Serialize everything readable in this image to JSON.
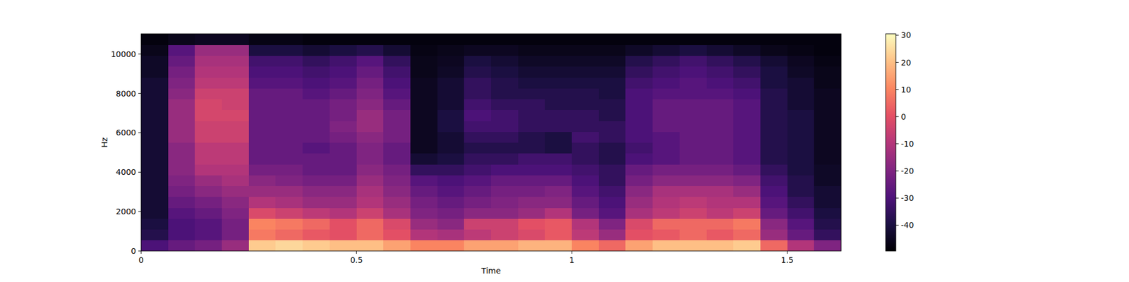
{
  "chart_data": {
    "type": "heatmap",
    "x_label": "Time",
    "y_label": "Hz",
    "color": "magma",
    "xlim": [
      0,
      1.625
    ],
    "ylim": [
      0,
      11025
    ],
    "xticks": [
      0,
      0.5,
      1,
      1.5
    ],
    "yticks": [
      0,
      2000,
      4000,
      6000,
      8000,
      10000
    ],
    "x_edges": [
      0,
      0.0625,
      0.125,
      0.1875,
      0.25,
      0.3125,
      0.375,
      0.4375,
      0.5,
      0.5625,
      0.625,
      0.6875,
      0.75,
      0.8125,
      0.875,
      0.9375,
      1.0,
      1.0625,
      1.125,
      1.1875,
      1.25,
      1.3125,
      1.375,
      1.4375,
      1.5,
      1.5625,
      1.625
    ],
    "y_edges": [
      0,
      551.25,
      1102.5,
      1653.75,
      2205,
      2756.25,
      3307.5,
      3858.75,
      4410,
      4961.25,
      5512.5,
      6063.75,
      6615,
      7166.25,
      7717.5,
      8268.75,
      8820,
      9371.25,
      9922.5,
      10473.75,
      11025
    ],
    "z": [
      [
        -30,
        -25,
        -22,
        -15,
        22,
        24,
        22,
        20,
        20,
        15,
        10,
        10,
        15,
        15,
        18,
        18,
        10,
        5,
        15,
        20,
        20,
        20,
        22,
        5,
        -10,
        -20
      ],
      [
        -38,
        -30,
        -28,
        -22,
        8,
        5,
        2,
        0,
        5,
        0,
        -10,
        -12,
        -8,
        -5,
        -2,
        2,
        -8,
        -15,
        0,
        2,
        5,
        2,
        5,
        -15,
        -25,
        -35
      ],
      [
        -40,
        -30,
        -28,
        -22,
        10,
        8,
        5,
        0,
        5,
        -2,
        -15,
        -18,
        -5,
        -5,
        0,
        2,
        -10,
        -20,
        -2,
        5,
        5,
        5,
        8,
        -18,
        -28,
        -38
      ],
      [
        -42,
        -28,
        -25,
        -20,
        -2,
        -5,
        -8,
        -10,
        -5,
        -12,
        -20,
        -22,
        -18,
        -18,
        -15,
        -10,
        -22,
        -28,
        -12,
        -8,
        -5,
        -8,
        -5,
        -25,
        -32,
        -40
      ],
      [
        -42,
        -25,
        -22,
        -18,
        -10,
        -12,
        -15,
        -15,
        -10,
        -15,
        -22,
        -25,
        -22,
        -20,
        -18,
        -18,
        -25,
        -30,
        -15,
        -10,
        -8,
        -10,
        -10,
        -28,
        -35,
        -42
      ],
      [
        -42,
        -22,
        -18,
        -15,
        -15,
        -15,
        -18,
        -18,
        -12,
        -18,
        -25,
        -28,
        -25,
        -22,
        -22,
        -20,
        -28,
        -32,
        -18,
        -12,
        -12,
        -12,
        -15,
        -30,
        -38,
        -42
      ],
      [
        -42,
        -20,
        -15,
        -12,
        -18,
        -20,
        -22,
        -22,
        -15,
        -20,
        -28,
        -30,
        -28,
        -25,
        -25,
        -25,
        -30,
        -35,
        -22,
        -18,
        -18,
        -18,
        -20,
        -32,
        -38,
        -44
      ],
      [
        -42,
        -18,
        -10,
        -10,
        -22,
        -22,
        -25,
        -25,
        -18,
        -22,
        -35,
        -35,
        -32,
        -30,
        -30,
        -30,
        -32,
        -35,
        -25,
        -22,
        -22,
        -22,
        -25,
        -35,
        -40,
        -44
      ],
      [
        -42,
        -18,
        -8,
        -8,
        -25,
        -25,
        -25,
        -25,
        -20,
        -25,
        -42,
        -40,
        -35,
        -35,
        -32,
        -32,
        -35,
        -38,
        -30,
        -28,
        -25,
        -25,
        -28,
        -38,
        -40,
        -45
      ],
      [
        -42,
        -18,
        -8,
        -8,
        -25,
        -25,
        -28,
        -25,
        -20,
        -25,
        -45,
        -42,
        -38,
        -38,
        -38,
        -40,
        -35,
        -38,
        -32,
        -28,
        -25,
        -25,
        -28,
        -38,
        -40,
        -45
      ],
      [
        -42,
        -15,
        -5,
        -5,
        -25,
        -25,
        -25,
        -22,
        -18,
        -22,
        -45,
        -42,
        -35,
        -35,
        -38,
        -40,
        -32,
        -35,
        -30,
        -28,
        -25,
        -25,
        -28,
        -38,
        -40,
        -45
      ],
      [
        -42,
        -15,
        -5,
        -5,
        -25,
        -25,
        -25,
        -20,
        -15,
        -22,
        -45,
        -40,
        -32,
        -32,
        -35,
        -35,
        -35,
        -35,
        -30,
        -25,
        -25,
        -25,
        -28,
        -38,
        -40,
        -45
      ],
      [
        -42,
        -15,
        -3,
        -3,
        -25,
        -25,
        -25,
        -22,
        -15,
        -22,
        -45,
        -40,
        -30,
        -32,
        -35,
        -35,
        -35,
        -38,
        -30,
        -25,
        -25,
        -25,
        -28,
        -38,
        -40,
        -45
      ],
      [
        -42,
        -15,
        -3,
        -5,
        -25,
        -25,
        -25,
        -22,
        -18,
        -25,
        -45,
        -42,
        -32,
        -35,
        -35,
        -38,
        -38,
        -38,
        -30,
        -25,
        -25,
        -25,
        -28,
        -38,
        -42,
        -45
      ],
      [
        -42,
        -18,
        -5,
        -5,
        -25,
        -25,
        -28,
        -25,
        -20,
        -28,
        -45,
        -42,
        -35,
        -38,
        -38,
        -38,
        -38,
        -40,
        -30,
        -28,
        -28,
        -28,
        -30,
        -38,
        -42,
        -45
      ],
      [
        -42,
        -20,
        -8,
        -8,
        -28,
        -28,
        -30,
        -28,
        -22,
        -30,
        -45,
        -42,
        -35,
        -38,
        -40,
        -40,
        -40,
        -40,
        -32,
        -30,
        -28,
        -30,
        -32,
        -40,
        -42,
        -46
      ],
      [
        -44,
        -22,
        -10,
        -10,
        -30,
        -30,
        -32,
        -30,
        -25,
        -32,
        -46,
        -44,
        -38,
        -40,
        -42,
        -42,
        -42,
        -42,
        -35,
        -32,
        -30,
        -32,
        -35,
        -40,
        -44,
        -46
      ],
      [
        -44,
        -25,
        -12,
        -12,
        -32,
        -32,
        -35,
        -32,
        -28,
        -35,
        -46,
        -45,
        -40,
        -42,
        -44,
        -44,
        -44,
        -44,
        -38,
        -35,
        -32,
        -35,
        -38,
        -42,
        -45,
        -47
      ],
      [
        -46,
        -28,
        -15,
        -15,
        -40,
        -40,
        -42,
        -40,
        -38,
        -42,
        -47,
        -46,
        -45,
        -45,
        -46,
        -46,
        -46,
        -46,
        -44,
        -42,
        -40,
        -42,
        -44,
        -46,
        -47,
        -48
      ],
      [
        -48,
        -46,
        -45,
        -45,
        -47,
        -47,
        -48,
        -48,
        -48,
        -48,
        -48,
        -48,
        -48,
        -48,
        -48,
        -48,
        -48,
        -48,
        -48,
        -48,
        -48,
        -48,
        -48,
        -48,
        -48,
        -48
      ]
    ],
    "colorbar": {
      "range": [
        -49.5,
        30.5
      ],
      "ticks": [
        -40,
        -30,
        -20,
        -10,
        0,
        10,
        20,
        30
      ]
    }
  }
}
